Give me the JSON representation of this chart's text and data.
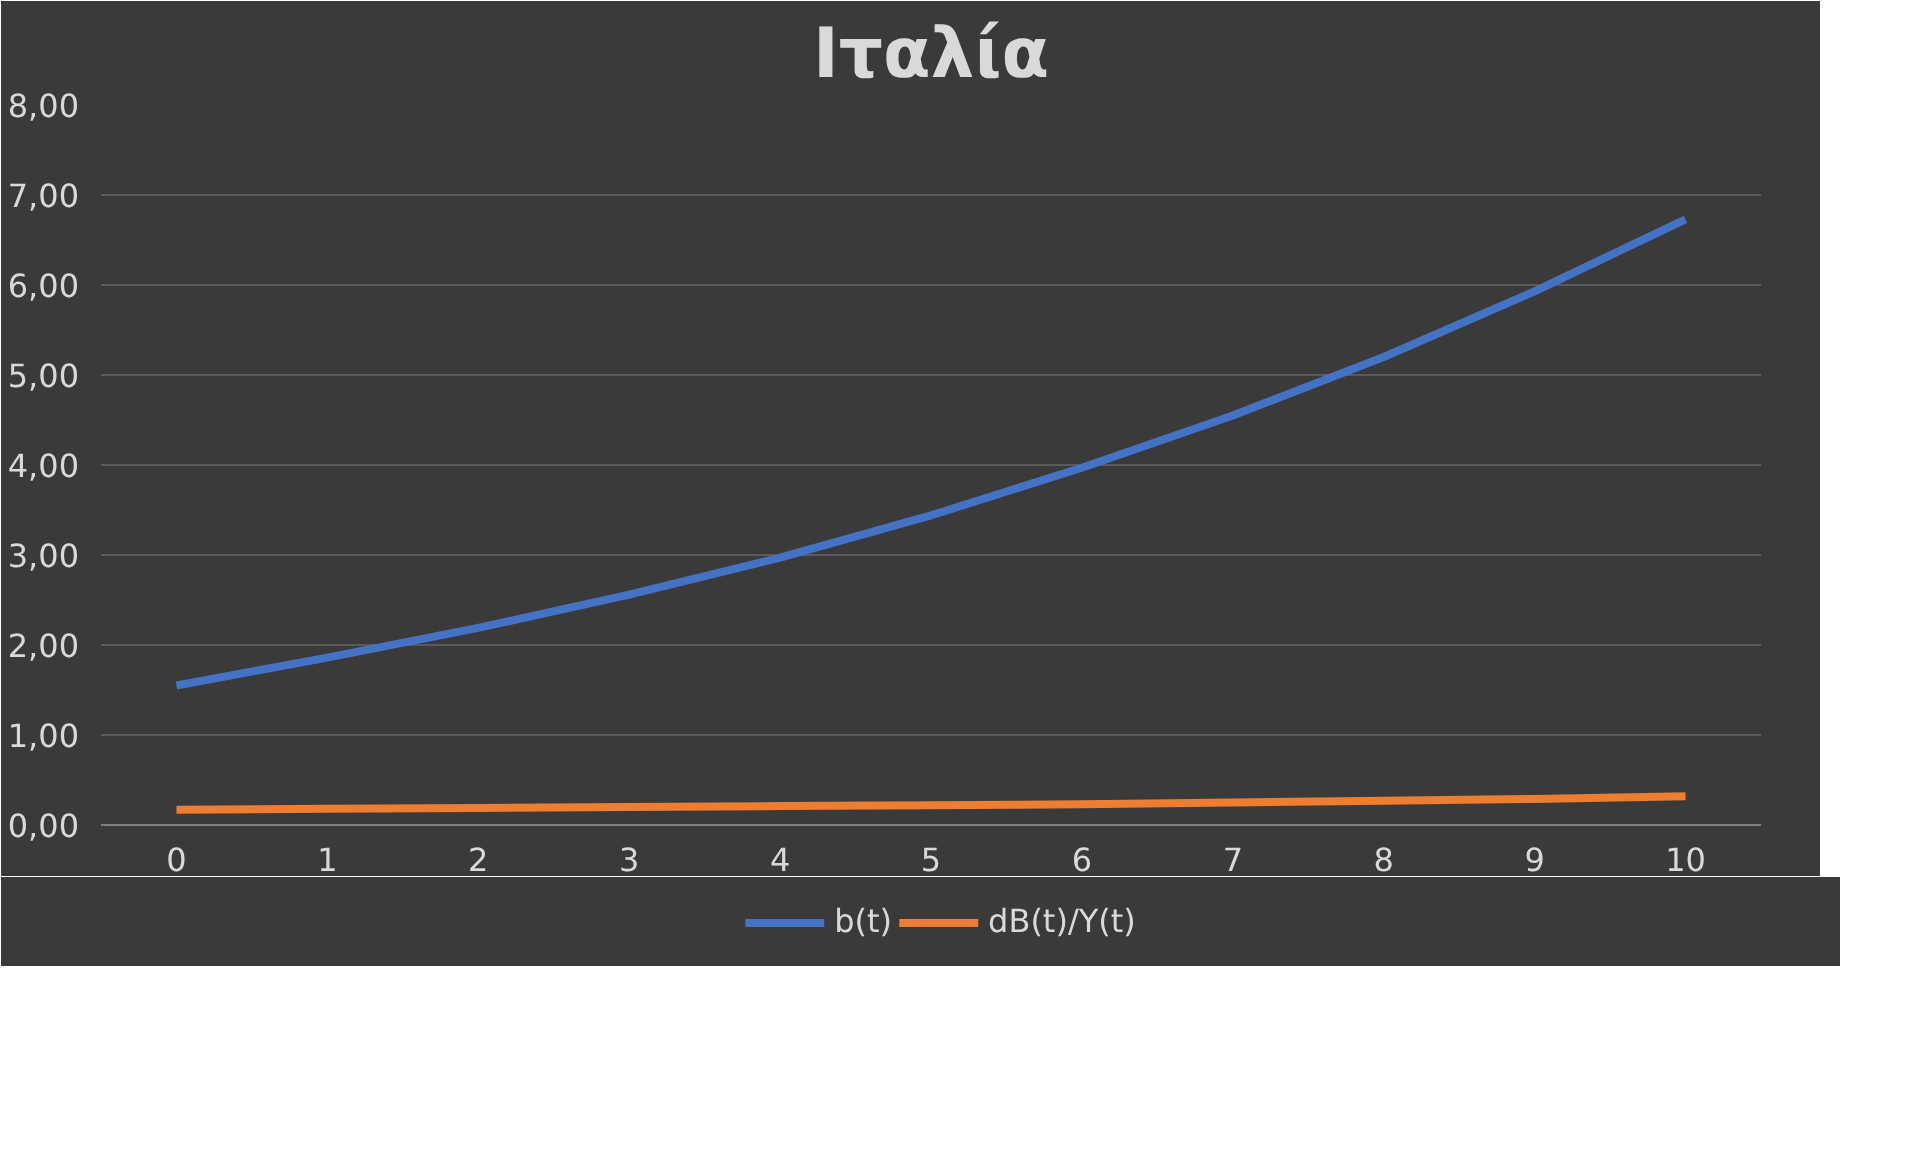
{
  "chart_data": {
    "type": "line",
    "title": "Ιταλία",
    "categories": [
      "0",
      "1",
      "2",
      "3",
      "4",
      "5",
      "6",
      "7",
      "8",
      "9",
      "10"
    ],
    "series": [
      {
        "name": "b(t)",
        "color": "#4472c4",
        "values": [
          1.55,
          1.86,
          2.19,
          2.56,
          2.97,
          3.44,
          3.97,
          4.55,
          5.2,
          5.93,
          6.73
        ]
      },
      {
        "name": "dB(t)/Y(t)",
        "color": "#ed7d31",
        "values": [
          0.17,
          0.18,
          0.19,
          0.2,
          0.21,
          0.22,
          0.23,
          0.25,
          0.27,
          0.29,
          0.32
        ]
      }
    ],
    "ylim": [
      0,
      8
    ],
    "yticks": [
      {
        "value": 0,
        "label": "0,00"
      },
      {
        "value": 1,
        "label": "1,00"
      },
      {
        "value": 2,
        "label": "2,00"
      },
      {
        "value": 3,
        "label": "3,00"
      },
      {
        "value": 4,
        "label": "4,00"
      },
      {
        "value": 5,
        "label": "5,00"
      },
      {
        "value": 6,
        "label": "6,00"
      },
      {
        "value": 7,
        "label": "7,00"
      },
      {
        "value": 8,
        "label": "8,00"
      }
    ],
    "grid": "y",
    "legend": "bottom",
    "marker": "none",
    "line_style": "solid"
  }
}
